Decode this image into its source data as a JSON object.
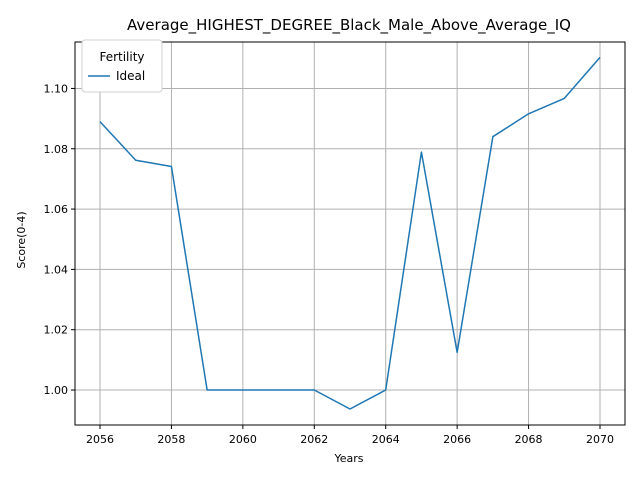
{
  "chart_data": {
    "type": "line",
    "title": "Average_HIGHEST_DEGREE_Black_Male_Above_Average_IQ",
    "xlabel": "Years",
    "ylabel": "Score(0-4)",
    "xlim": [
      2055.3,
      2070.7
    ],
    "ylim": [
      0.9884,
      1.1154
    ],
    "xticks": [
      2056,
      2058,
      2060,
      2062,
      2064,
      2066,
      2068,
      2070
    ],
    "yticks": [
      1.0,
      1.02,
      1.04,
      1.06,
      1.08,
      1.1
    ],
    "ytick_labels": [
      "1.00",
      "1.02",
      "1.04",
      "1.06",
      "1.08",
      "1.10"
    ],
    "grid": true,
    "legend": {
      "title": "Fertility",
      "placement": "top-left"
    },
    "x": [
      2056,
      2057,
      2058,
      2059,
      2060,
      2061,
      2062,
      2063,
      2064,
      2065,
      2066,
      2067,
      2068,
      2069,
      2070
    ],
    "series": [
      {
        "name": "Ideal",
        "color": "#1f77b4",
        "values": [
          1.089,
          1.0762,
          1.0741,
          1.0,
          1.0,
          1.0,
          1.0,
          0.9937,
          1.0,
          1.0789,
          1.0125,
          1.084,
          1.0916,
          1.0967,
          1.1103
        ]
      }
    ]
  }
}
